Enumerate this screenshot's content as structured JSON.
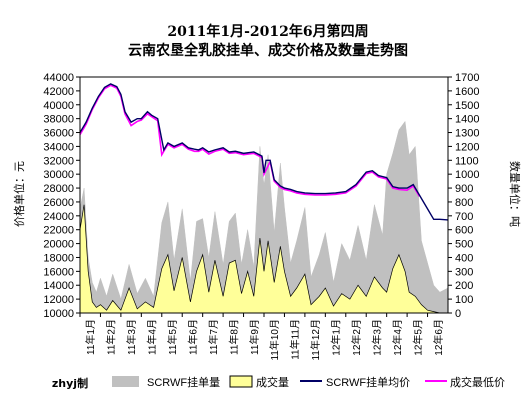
{
  "chart_data": {
    "type": "line",
    "title_line1": "2011年1月-2012年6月第四周",
    "title_line2": "云南农垦全乳胶挂单、成交价格及数量走势图",
    "ylabel_left": "价格单位：元",
    "ylabel_right": "数量单位：吨",
    "ylim_left": [
      10000,
      44000
    ],
    "ylim_right": [
      0,
      1700
    ],
    "yticks_left": [
      "44000",
      "42000",
      "40000",
      "38000",
      "36000",
      "34000",
      "32000",
      "30000",
      "28000",
      "26000",
      "24000",
      "22000",
      "20000",
      "18000",
      "16000",
      "14000",
      "12000",
      "10000"
    ],
    "yticks_right": [
      "1700",
      "1600",
      "1500",
      "1400",
      "1300",
      "1200",
      "1100",
      "1000",
      "900",
      "800",
      "700",
      "600",
      "500",
      "400",
      "300",
      "200",
      "100",
      "0"
    ],
    "categories": [
      "11年1月",
      "11年2月",
      "11年3月",
      "11年4月",
      "11年5月",
      "11年6月",
      "11年7月",
      "11年8月",
      "11年9月",
      "11年10月",
      "11年11月",
      "11年12月",
      "12年1月",
      "12年2月",
      "12年3月",
      "12年4月",
      "12年5月",
      "12年6月"
    ],
    "credit": "zhyj制",
    "legend": [
      "SCRWF挂单量",
      "成交量",
      "SCRWF挂单均价",
      "成交最低价"
    ],
    "colors": {
      "listing_volume": "#c0c0c0",
      "trade_volume": "#ffff99",
      "trade_volume_edge": "#000000",
      "listing_avg_price": "#000066",
      "trade_min_price": "#ff00ff"
    },
    "series": [
      {
        "name": "SCRWF挂单均价",
        "axis": "left",
        "x": [
          0,
          0.3,
          0.6,
          0.9,
          1.2,
          1.5,
          1.8,
          2.0,
          2.2,
          2.5,
          2.8,
          3.0,
          3.3,
          3.5,
          3.8,
          4.0,
          4.1,
          4.3,
          4.6,
          5.0,
          5.3,
          5.6,
          5.8,
          6.0,
          6.3,
          6.6,
          7.0,
          7.3,
          7.6,
          8.0,
          8.5,
          8.9,
          9.0,
          9.1,
          9.3,
          9.5,
          9.8,
          10.0,
          10.3,
          10.6,
          11.0,
          11.5,
          12.0,
          12.5,
          13.0,
          13.5,
          14.0,
          14.3,
          14.6,
          15.0,
          15.3,
          15.6,
          16.0,
          16.3,
          16.6,
          17.0,
          17.3,
          17.6,
          18.0
        ],
        "values": [
          36000,
          37500,
          39500,
          41200,
          42500,
          43000,
          42600,
          41500,
          39000,
          37500,
          38000,
          38000,
          39000,
          38500,
          38000,
          35000,
          33500,
          34500,
          34000,
          34500,
          33800,
          33600,
          33500,
          33800,
          33200,
          33500,
          33800,
          33200,
          33300,
          33000,
          33200,
          32600,
          30200,
          32000,
          32000,
          29200,
          28300,
          28000,
          27800,
          27500,
          27300,
          27200,
          27200,
          27300,
          27500,
          28500,
          30300,
          30500,
          29800,
          29500,
          28200,
          28000,
          28000,
          28500,
          27000,
          25000,
          23500,
          23500,
          23400
        ]
      },
      {
        "name": "成交最低价",
        "axis": "left",
        "x": [
          0,
          0.3,
          0.6,
          0.9,
          1.2,
          1.5,
          1.8,
          2.0,
          2.2,
          2.5,
          2.8,
          3.0,
          3.3,
          3.5,
          3.8,
          4.0,
          4.1,
          4.3,
          4.6,
          5.0,
          5.3,
          5.6,
          5.8,
          6.0,
          6.3,
          6.6,
          7.0,
          7.3,
          7.6,
          8.0,
          8.5,
          8.9,
          9.0,
          9.3,
          9.5,
          9.8,
          10.0,
          10.3,
          10.6,
          11.0,
          11.5,
          12.0,
          12.5,
          13.0,
          13.5,
          14.0,
          14.3,
          14.6,
          15.0,
          15.3,
          15.6,
          16.0,
          16.3,
          16.6
        ],
        "values": [
          35700,
          37200,
          39300,
          41000,
          42300,
          42800,
          42400,
          41200,
          38700,
          37000,
          37600,
          37800,
          38700,
          38300,
          37700,
          32800,
          33300,
          34300,
          33800,
          34300,
          33600,
          33300,
          33300,
          33600,
          32900,
          33300,
          33600,
          33000,
          33100,
          32800,
          33000,
          32400,
          30000,
          31800,
          29000,
          28100,
          27800,
          27600,
          27300,
          27100,
          27000,
          27000,
          27100,
          27300,
          28300,
          30100,
          30300,
          29600,
          29300,
          28000,
          27800,
          27700,
          28300,
          26800
        ]
      },
      {
        "name": "SCRWF挂单量",
        "axis": "right",
        "x": [
          0,
          0.2,
          0.4,
          0.6,
          0.8,
          1.0,
          1.3,
          1.6,
          2.0,
          2.4,
          2.8,
          3.2,
          3.6,
          4.0,
          4.3,
          4.6,
          5.0,
          5.4,
          5.7,
          6.0,
          6.3,
          6.6,
          7.0,
          7.3,
          7.6,
          7.9,
          8.2,
          8.5,
          8.8,
          9.0,
          9.2,
          9.5,
          9.8,
          10.0,
          10.3,
          10.6,
          11.0,
          11.3,
          11.7,
          12.0,
          12.4,
          12.8,
          13.2,
          13.6,
          14.0,
          14.4,
          14.8,
          15.0,
          15.3,
          15.6,
          15.9,
          16.1,
          16.4,
          16.7,
          17.0,
          17.3,
          17.6,
          18.0
        ],
        "values": [
          750,
          900,
          400,
          220,
          150,
          250,
          120,
          280,
          100,
          350,
          140,
          250,
          120,
          650,
          800,
          380,
          750,
          230,
          660,
          680,
          400,
          730,
          350,
          660,
          720,
          350,
          600,
          330,
          1200,
          920,
          1140,
          580,
          1080,
          760,
          360,
          520,
          760,
          260,
          420,
          580,
          220,
          500,
          380,
          630,
          380,
          780,
          560,
          1000,
          1150,
          1320,
          1380,
          1140,
          1200,
          520,
          360,
          200,
          150,
          180
        ]
      },
      {
        "name": "成交量",
        "axis": "right",
        "x": [
          0,
          0.2,
          0.4,
          0.6,
          0.8,
          1.0,
          1.3,
          1.6,
          2.0,
          2.4,
          2.8,
          3.2,
          3.6,
          4.0,
          4.3,
          4.6,
          5.0,
          5.4,
          5.7,
          6.0,
          6.3,
          6.6,
          7.0,
          7.3,
          7.6,
          7.9,
          8.2,
          8.5,
          8.8,
          9.0,
          9.2,
          9.5,
          9.8,
          10.0,
          10.3,
          10.6,
          11.0,
          11.3,
          11.7,
          12.0,
          12.4,
          12.8,
          13.2,
          13.6,
          14.0,
          14.4,
          14.8,
          15.0,
          15.3,
          15.6,
          15.9,
          16.1,
          16.4,
          16.7,
          17.0,
          17.3,
          17.6,
          18.0
        ],
        "values": [
          600,
          780,
          300,
          80,
          40,
          60,
          20,
          90,
          20,
          180,
          30,
          80,
          40,
          320,
          420,
          160,
          400,
          80,
          300,
          420,
          150,
          380,
          120,
          360,
          380,
          140,
          300,
          120,
          540,
          300,
          520,
          220,
          480,
          300,
          120,
          180,
          280,
          60,
          120,
          180,
          50,
          140,
          100,
          200,
          120,
          260,
          180,
          150,
          320,
          420,
          300,
          150,
          120,
          60,
          20,
          10,
          0,
          0
        ]
      }
    ]
  }
}
